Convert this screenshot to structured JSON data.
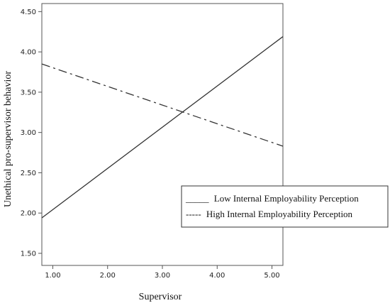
{
  "chart_data": {
    "type": "line",
    "x": [
      0.8,
      5.2
    ],
    "series": [
      {
        "name": "Low Internal Employability Perception",
        "values": [
          1.94,
          4.19
        ],
        "style": "solid"
      },
      {
        "name": "High Internal Employability Perception",
        "values": [
          3.85,
          2.83
        ],
        "style": "dashdot"
      }
    ],
    "xlabel": "Supervisor",
    "ylabel": "Unethical pro-supervisor behavior",
    "xlim": [
      0.8,
      5.2
    ],
    "ylim": [
      1.35,
      4.6
    ],
    "xticks": [
      1.0,
      2.0,
      3.0,
      4.0,
      5.0
    ],
    "xtick_labels": [
      "1.00",
      "2.00",
      "3.00",
      "4.00",
      "5.00"
    ],
    "yticks": [
      1.5,
      2.0,
      2.5,
      3.0,
      3.5,
      4.0,
      4.5
    ],
    "ytick_labels": [
      "1.50",
      "2.00",
      "2.50",
      "3.00",
      "3.50",
      "4.00",
      "4.50"
    ],
    "grid": false,
    "legend_placement": "right",
    "legend_entries": [
      {
        "sample": "_____",
        "label": "Low Internal Employability Perception"
      },
      {
        "sample": "-----",
        "label": "High Internal Employability Perception"
      }
    ],
    "line_color": "#333333"
  }
}
